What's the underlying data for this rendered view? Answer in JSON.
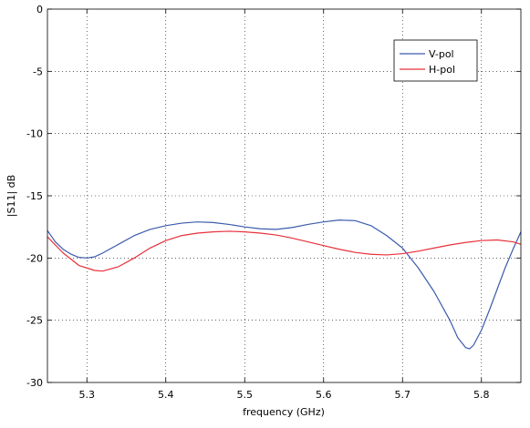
{
  "chart_data": {
    "type": "line",
    "title": "",
    "xlabel": "frequency (GHz)",
    "ylabel": "|S11| dB",
    "xlim": [
      5.25,
      5.85
    ],
    "ylim": [
      -30,
      0
    ],
    "xticks": [
      5.3,
      5.4,
      5.5,
      5.6,
      5.7,
      5.8
    ],
    "xtick_labels": [
      "5.3",
      "5.4",
      "5.5",
      "5.6",
      "5.7",
      "5.8"
    ],
    "yticks": [
      0,
      -5,
      -10,
      -15,
      -20,
      -25,
      -30
    ],
    "ytick_labels": [
      "0",
      "-5",
      "-10",
      "-15",
      "-20",
      "-25",
      "-30"
    ],
    "grid": true,
    "legend_position": "top-right",
    "series": [
      {
        "name": "V-pol",
        "color": "#3b5bab",
        "points": [
          [
            5.25,
            -17.8
          ],
          [
            5.26,
            -18.7
          ],
          [
            5.27,
            -19.3
          ],
          [
            5.28,
            -19.7
          ],
          [
            5.29,
            -19.95
          ],
          [
            5.3,
            -20.0
          ],
          [
            5.31,
            -19.9
          ],
          [
            5.32,
            -19.6
          ],
          [
            5.34,
            -18.9
          ],
          [
            5.36,
            -18.2
          ],
          [
            5.38,
            -17.7
          ],
          [
            5.4,
            -17.4
          ],
          [
            5.42,
            -17.2
          ],
          [
            5.44,
            -17.1
          ],
          [
            5.46,
            -17.15
          ],
          [
            5.48,
            -17.3
          ],
          [
            5.5,
            -17.5
          ],
          [
            5.52,
            -17.65
          ],
          [
            5.54,
            -17.7
          ],
          [
            5.56,
            -17.55
          ],
          [
            5.58,
            -17.3
          ],
          [
            5.6,
            -17.1
          ],
          [
            5.62,
            -16.95
          ],
          [
            5.64,
            -17.0
          ],
          [
            5.66,
            -17.4
          ],
          [
            5.68,
            -18.2
          ],
          [
            5.7,
            -19.2
          ],
          [
            5.72,
            -20.8
          ],
          [
            5.74,
            -22.7
          ],
          [
            5.76,
            -25.0
          ],
          [
            5.77,
            -26.4
          ],
          [
            5.78,
            -27.2
          ],
          [
            5.785,
            -27.3
          ],
          [
            5.79,
            -27.0
          ],
          [
            5.8,
            -25.8
          ],
          [
            5.81,
            -24.2
          ],
          [
            5.82,
            -22.5
          ],
          [
            5.83,
            -20.8
          ],
          [
            5.84,
            -19.3
          ],
          [
            5.85,
            -17.9
          ]
        ]
      },
      {
        "name": "H-pol",
        "color": "#e8303a",
        "points": [
          [
            5.25,
            -18.3
          ],
          [
            5.27,
            -19.6
          ],
          [
            5.29,
            -20.6
          ],
          [
            5.31,
            -21.0
          ],
          [
            5.32,
            -21.05
          ],
          [
            5.34,
            -20.7
          ],
          [
            5.36,
            -20.0
          ],
          [
            5.38,
            -19.2
          ],
          [
            5.4,
            -18.6
          ],
          [
            5.42,
            -18.2
          ],
          [
            5.44,
            -18.0
          ],
          [
            5.46,
            -17.9
          ],
          [
            5.48,
            -17.85
          ],
          [
            5.5,
            -17.9
          ],
          [
            5.52,
            -18.0
          ],
          [
            5.54,
            -18.15
          ],
          [
            5.56,
            -18.4
          ],
          [
            5.58,
            -18.7
          ],
          [
            5.6,
            -19.0
          ],
          [
            5.62,
            -19.3
          ],
          [
            5.64,
            -19.55
          ],
          [
            5.66,
            -19.7
          ],
          [
            5.68,
            -19.75
          ],
          [
            5.7,
            -19.65
          ],
          [
            5.72,
            -19.45
          ],
          [
            5.74,
            -19.2
          ],
          [
            5.76,
            -18.95
          ],
          [
            5.78,
            -18.75
          ],
          [
            5.8,
            -18.6
          ],
          [
            5.82,
            -18.55
          ],
          [
            5.84,
            -18.7
          ],
          [
            5.85,
            -18.9
          ]
        ]
      }
    ]
  }
}
